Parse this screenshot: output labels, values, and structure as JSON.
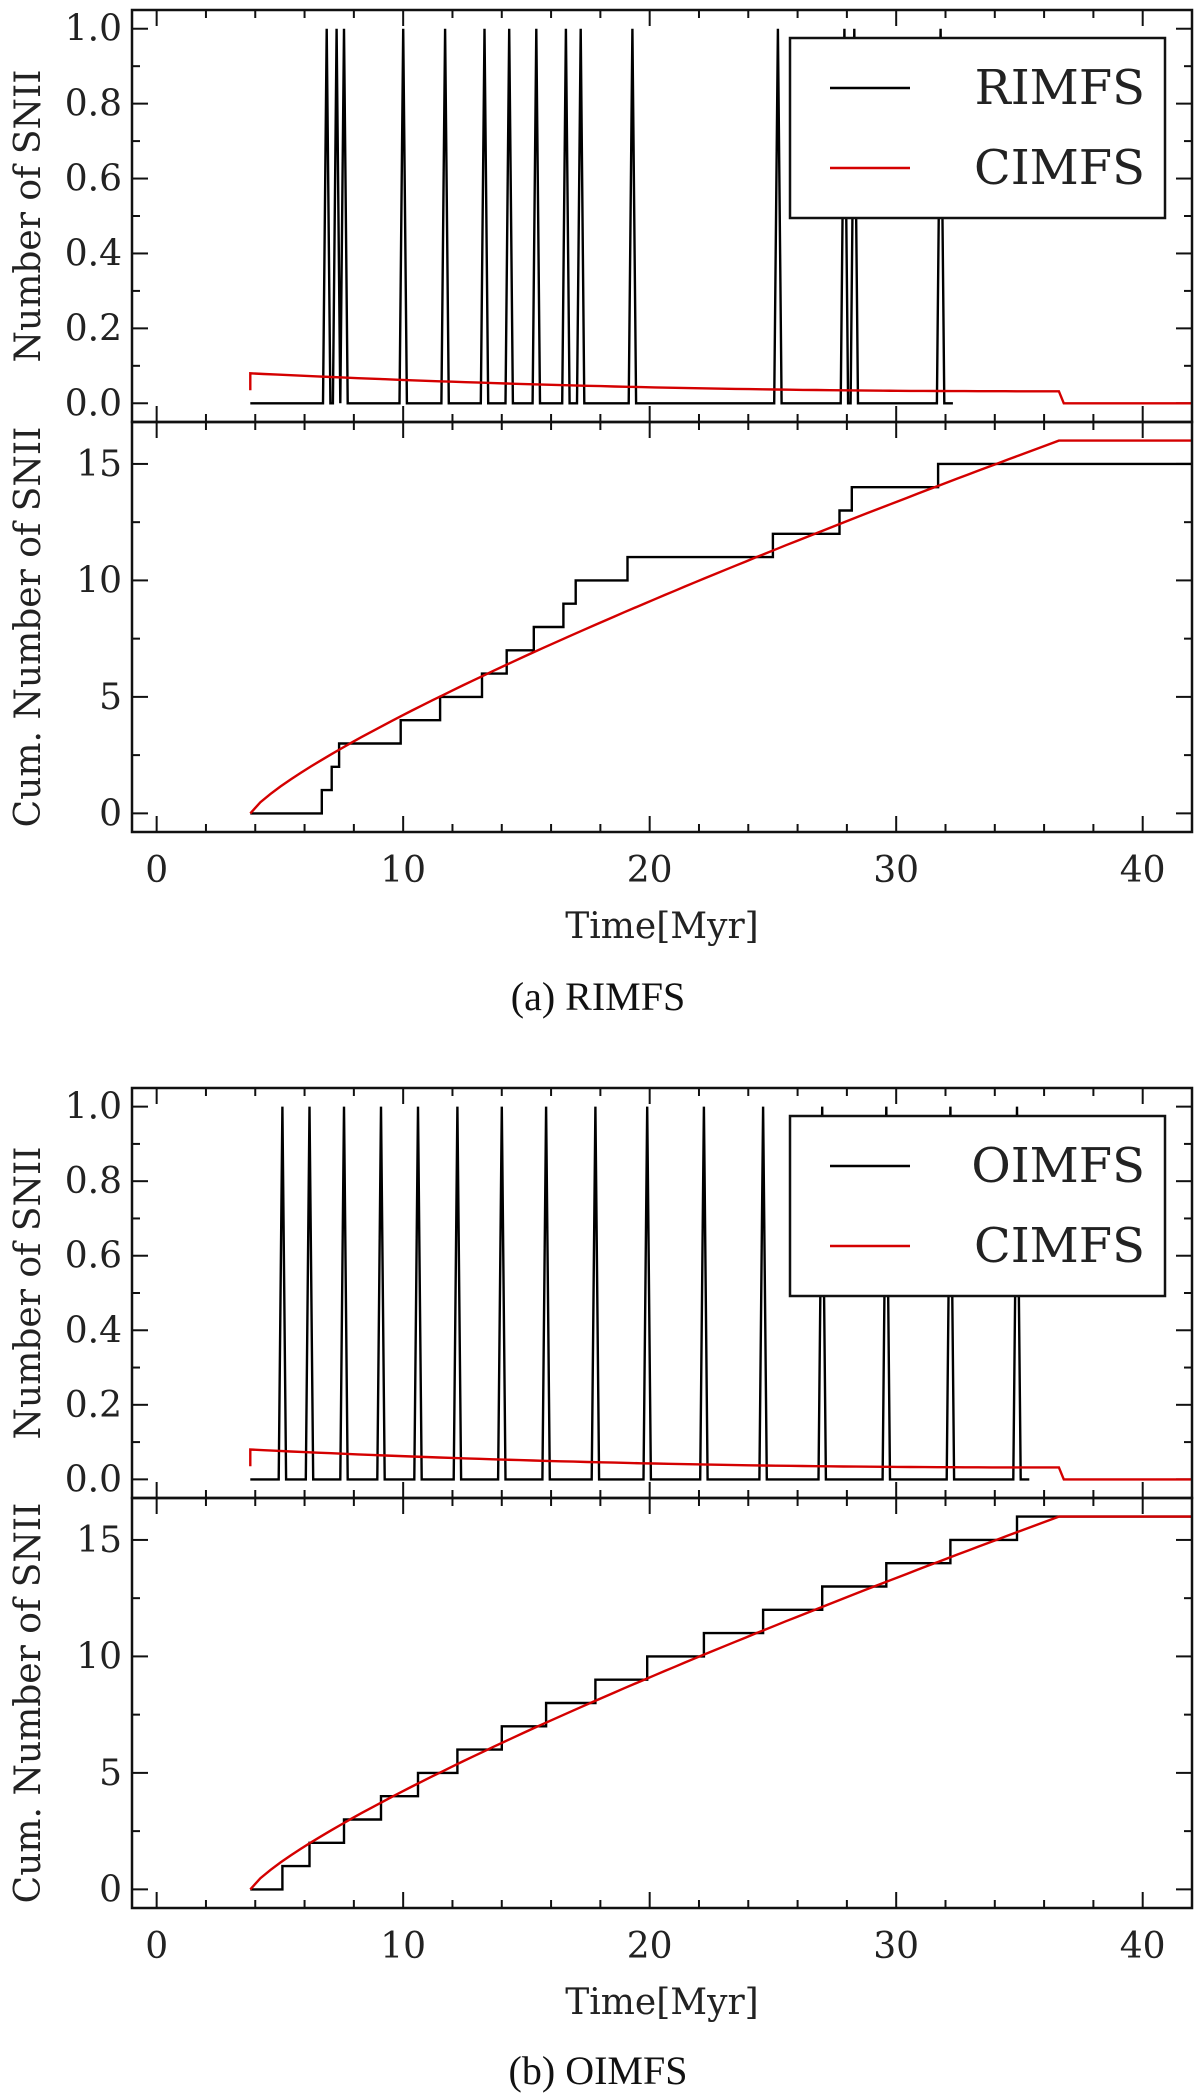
{
  "chart_data": [
    {
      "id": "a",
      "caption": "(a) RIMFS",
      "x_label": "Time[Myr]",
      "xlim": [
        -1,
        42
      ],
      "x_ticks": [
        0,
        10,
        20,
        30,
        40
      ],
      "top": {
        "type": "line",
        "ylabel": "Number of SNII",
        "ylim": [
          -0.05,
          1.05
        ],
        "y_ticks": [
          "0.0",
          "0.2",
          "0.4",
          "0.6",
          "0.8",
          "1.0"
        ],
        "spike_times": [
          6.9,
          7.3,
          7.6,
          10.0,
          11.7,
          13.3,
          14.3,
          15.4,
          16.6,
          17.2,
          19.3,
          25.2,
          27.9,
          28.3,
          31.8
        ],
        "spike_width": 0.3,
        "series": [
          {
            "name": "RIMFS",
            "color": "#000000"
          },
          {
            "name": "CIMFS",
            "color": "#d40000"
          }
        ],
        "cimfs_rate": {
          "start": 3.8,
          "end": 36.6,
          "v_initial": 0.035,
          "v_peak": 0.08,
          "v_end": 0.032,
          "end_time": 42
        }
      },
      "bottom": {
        "type": "line",
        "ylabel": "Cum. Number of SNII",
        "ylim": [
          -0.8,
          16.8
        ],
        "y_ticks": [
          "0",
          "5",
          "10",
          "15"
        ],
        "step_x": [
          3.8,
          6.7,
          7.1,
          7.4,
          7.7,
          9.9,
          11.5,
          13.2,
          14.2,
          15.3,
          16.5,
          17.0,
          19.1,
          25.0,
          27.7,
          28.2,
          31.7,
          42.0
        ],
        "step_y": [
          0,
          1,
          2,
          3,
          3,
          4,
          5,
          6,
          7,
          8,
          9,
          10,
          11,
          12,
          13,
          14,
          15,
          15
        ],
        "cimfs_cum": {
          "start": 3.8,
          "end": 36.6,
          "total": 16,
          "exponent": 0.8,
          "end_time": 42
        }
      }
    },
    {
      "id": "b",
      "caption": "(b) OIMFS",
      "x_label": "Time[Myr]",
      "xlim": [
        -1,
        42
      ],
      "x_ticks": [
        0,
        10,
        20,
        30,
        40
      ],
      "top": {
        "type": "line",
        "ylabel": "Number of SNII",
        "ylim": [
          -0.05,
          1.05
        ],
        "y_ticks": [
          "0.0",
          "0.2",
          "0.4",
          "0.6",
          "0.8",
          "1.0"
        ],
        "spike_times": [
          5.1,
          6.2,
          7.6,
          9.1,
          10.6,
          12.2,
          14.0,
          15.8,
          17.8,
          19.9,
          22.2,
          24.6,
          27.0,
          29.6,
          32.2,
          34.9
        ],
        "spike_width": 0.3,
        "series": [
          {
            "name": "OIMFS",
            "color": "#000000"
          },
          {
            "name": "CIMFS",
            "color": "#d40000"
          }
        ],
        "cimfs_rate": {
          "start": 3.8,
          "end": 36.6,
          "v_initial": 0.035,
          "v_peak": 0.08,
          "v_end": 0.032,
          "end_time": 42
        }
      },
      "bottom": {
        "type": "line",
        "ylabel": "Cum. Number of SNII",
        "ylim": [
          -0.8,
          16.8
        ],
        "y_ticks": [
          "0",
          "5",
          "10",
          "15"
        ],
        "step_x": [
          3.8,
          5.1,
          6.2,
          7.6,
          9.1,
          10.6,
          12.2,
          14.0,
          15.8,
          17.8,
          19.9,
          22.2,
          24.6,
          27.0,
          29.6,
          32.2,
          34.9,
          42.0
        ],
        "step_y": [
          0,
          1,
          2,
          3,
          4,
          5,
          6,
          7,
          8,
          9,
          10,
          11,
          12,
          13,
          14,
          15,
          16,
          16
        ],
        "cimfs_cum": {
          "start": 3.8,
          "end": 36.6,
          "total": 16,
          "exponent": 0.8,
          "end_time": 42
        }
      }
    }
  ]
}
